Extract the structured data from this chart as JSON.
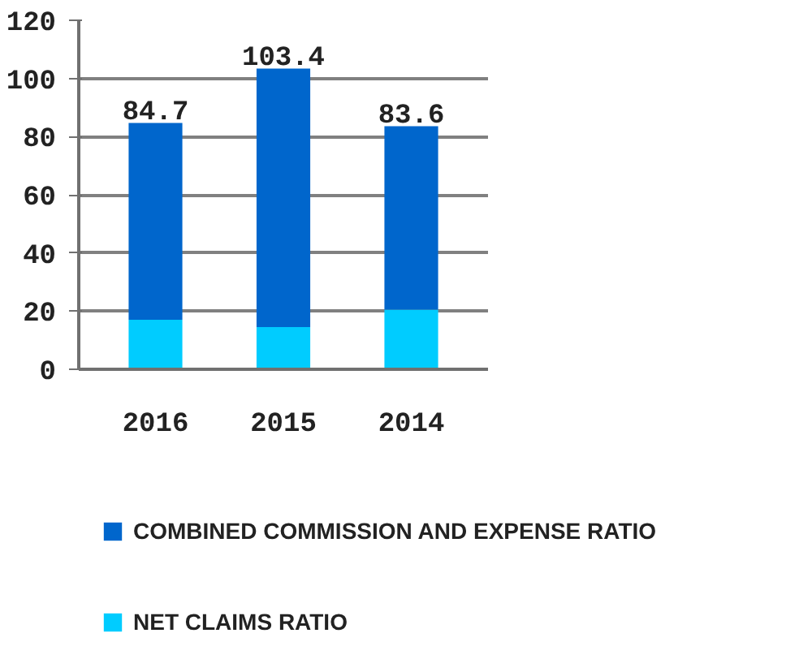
{
  "chart_data": {
    "type": "bar",
    "stacked": true,
    "categories": [
      "2016",
      "2015",
      "2014"
    ],
    "series": [
      {
        "name": "NET CLAIMS RATIO",
        "color": "#00ccff",
        "values": [
          17,
          14.5,
          20.5
        ]
      },
      {
        "name": "COMBINED COMMISSION AND EXPENSE RATIO",
        "color": "#0066cc",
        "values": [
          67.7,
          88.9,
          63.1
        ]
      }
    ],
    "totals": [
      "84.7",
      "103.4",
      "83.6"
    ],
    "ylim": [
      0,
      120
    ],
    "yticks": [
      0,
      20,
      40,
      60,
      80,
      100,
      120
    ],
    "grid": "y",
    "legend": "bottom"
  }
}
